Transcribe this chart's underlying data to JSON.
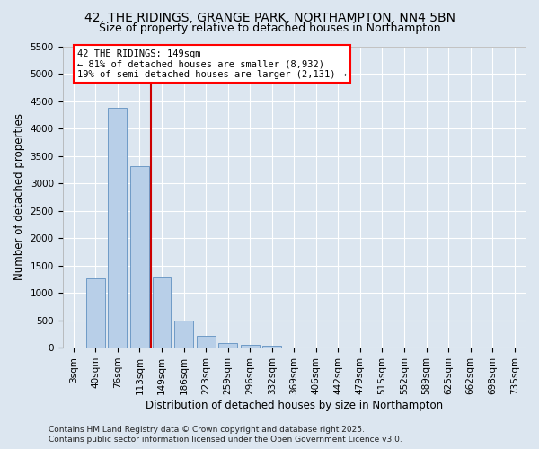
{
  "title_line1": "42, THE RIDINGS, GRANGE PARK, NORTHAMPTON, NN4 5BN",
  "title_line2": "Size of property relative to detached houses in Northampton",
  "xlabel": "Distribution of detached houses by size in Northampton",
  "ylabel": "Number of detached properties",
  "categories": [
    "3sqm",
    "40sqm",
    "76sqm",
    "113sqm",
    "149sqm",
    "186sqm",
    "223sqm",
    "259sqm",
    "296sqm",
    "332sqm",
    "369sqm",
    "406sqm",
    "442sqm",
    "479sqm",
    "515sqm",
    "552sqm",
    "589sqm",
    "625sqm",
    "662sqm",
    "698sqm",
    "735sqm"
  ],
  "values": [
    0,
    1260,
    4380,
    3310,
    1280,
    500,
    215,
    80,
    50,
    35,
    0,
    0,
    0,
    0,
    0,
    0,
    0,
    0,
    0,
    0,
    0
  ],
  "bar_color": "#b8cfe8",
  "bar_edge_color": "#6090c0",
  "vline_color": "#cc0000",
  "ylim_max": 5500,
  "yticks": [
    0,
    500,
    1000,
    1500,
    2000,
    2500,
    3000,
    3500,
    4000,
    4500,
    5000,
    5500
  ],
  "annotation_line1": "42 THE RIDINGS: 149sqm",
  "annotation_line2": "← 81% of detached houses are smaller (8,932)",
  "annotation_line3": "19% of semi-detached houses are larger (2,131) →",
  "background_color": "#dce6f0",
  "grid_color": "#ffffff",
  "footer_line1": "Contains HM Land Registry data © Crown copyright and database right 2025.",
  "footer_line2": "Contains public sector information licensed under the Open Government Licence v3.0.",
  "title_fontsize": 10,
  "subtitle_fontsize": 9,
  "axis_label_fontsize": 8.5,
  "tick_fontsize": 7.5,
  "annotation_fontsize": 7.5,
  "footer_fontsize": 6.5
}
